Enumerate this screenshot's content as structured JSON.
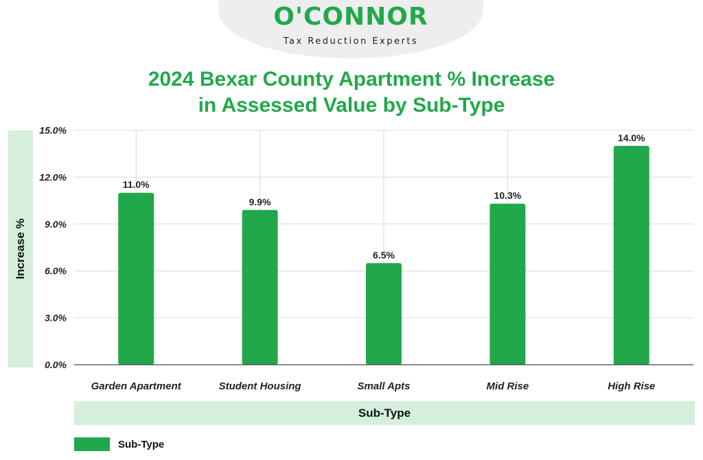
{
  "brand": {
    "logo_text": "O'CONNOR",
    "tagline": "Tax Reduction Experts"
  },
  "colors": {
    "bar": "#21a84a",
    "title": "#21a84a",
    "band": "#d5efdc",
    "grid": "#d9d9d9"
  },
  "legend": {
    "label": "Sub-Type",
    "placement": "bottom-left"
  },
  "chart_data": {
    "type": "bar",
    "title": "2024 Bexar County Apartment % Increase in Assessed Value by Sub-Type",
    "title_lines": [
      "2024 Bexar County Apartment % Increase",
      "in Assessed Value by Sub-Type"
    ],
    "xlabel": "Sub-Type",
    "ylabel": "Increase %",
    "categories": [
      "Garden Apartment",
      "Student Housing",
      "Small Apts",
      "Mid Rise",
      "High Rise"
    ],
    "series": [
      {
        "name": "Sub-Type",
        "values": [
          11.0,
          9.9,
          6.5,
          10.3,
          14.0
        ]
      }
    ],
    "data_labels": [
      "11.0%",
      "9.9%",
      "6.5%",
      "10.3%",
      "14.0%"
    ],
    "ylim": [
      0,
      15
    ],
    "yticks": [
      0,
      3,
      6,
      9,
      12,
      15
    ],
    "ytick_labels": [
      "0.0%",
      "3.0%",
      "6.0%",
      "9.0%",
      "12.0%",
      "15.0%"
    ],
    "grid": true
  }
}
